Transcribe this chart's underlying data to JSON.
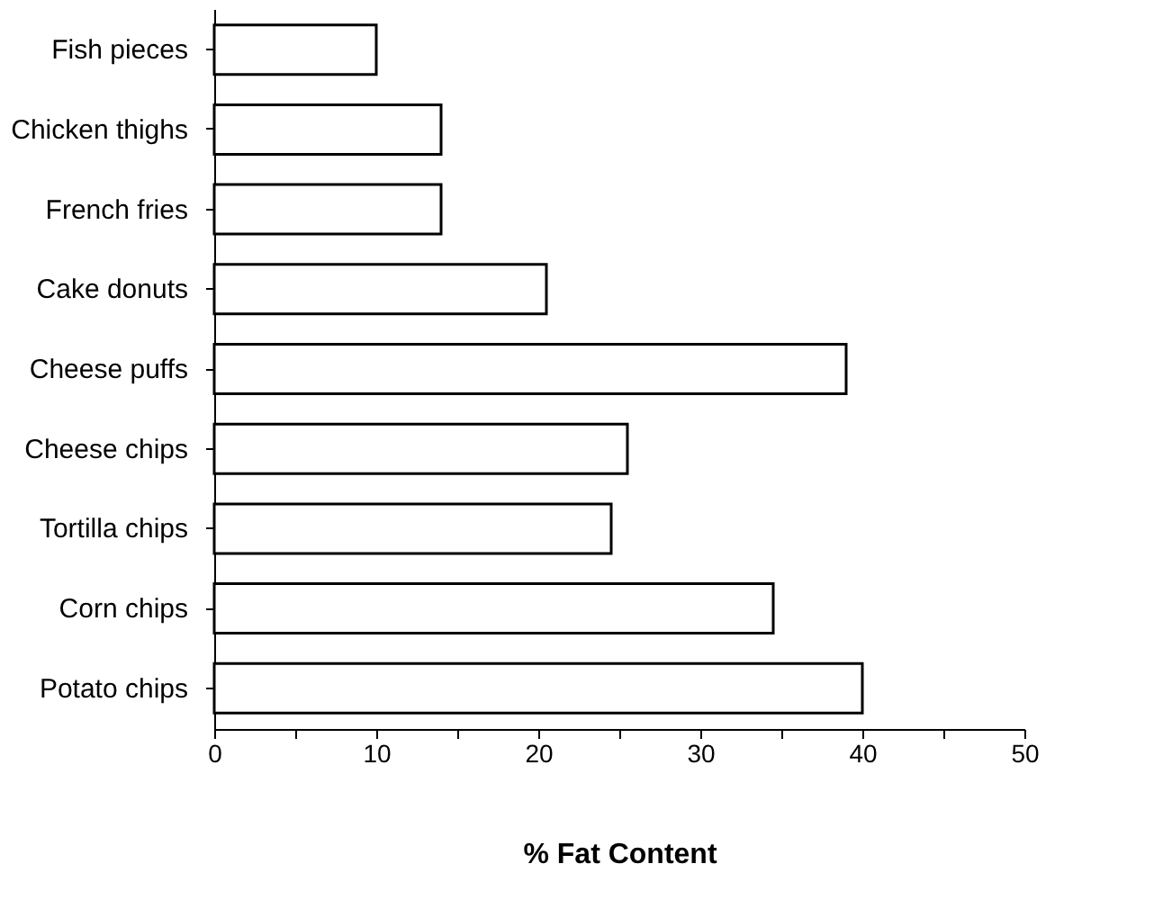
{
  "chart_data": {
    "type": "bar",
    "orientation": "horizontal",
    "xlabel": "% Fat Content",
    "categories": [
      "Fish pieces",
      "Chicken thighs",
      "French fries",
      "Cake donuts",
      "Cheese puffs",
      "Cheese chips",
      "Tortilla chips",
      "Corn chips",
      "Potato chips"
    ],
    "values": [
      10,
      14,
      14,
      20.5,
      39,
      25.5,
      24.5,
      34.5,
      40
    ],
    "color": "#ffffff",
    "xlim": [
      0,
      50
    ],
    "xticks": [
      0,
      {
        "value": 5,
        "label": null
      },
      10,
      {
        "value": 15,
        "label": null
      },
      20,
      {
        "value": 25,
        "label": null
      },
      30,
      {
        "value": 35,
        "label": null
      },
      40,
      {
        "value": 45,
        "label": null
      },
      50
    ],
    "grid": false
  }
}
